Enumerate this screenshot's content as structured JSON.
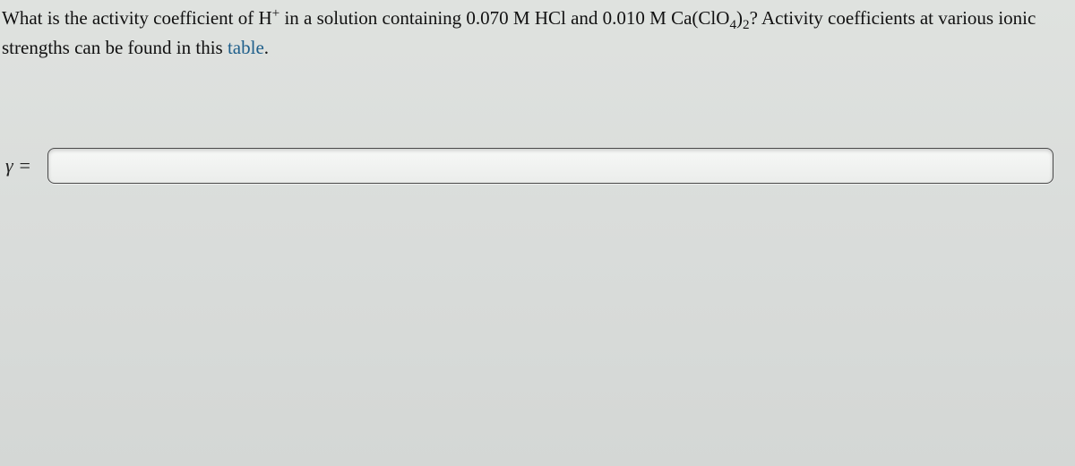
{
  "background_color": "#dfe2df",
  "text_color": "#111111",
  "link_color": "#1f5f8b",
  "font_family": "Georgia, 'Times New Roman', serif",
  "question": {
    "prefix": "What is the activity coefficient of H",
    "h_sup": "+",
    "mid1": " in a solution containing 0.070 M HCl and 0.010 M Ca(ClO",
    "clo_sub": "4",
    "mid2": ")",
    "paren_sub": "2",
    "mid3": "? Activity coefficients at various ionic strengths can be found in this ",
    "link_text": "table",
    "suffix": ".",
    "fontsize": 21
  },
  "answer": {
    "label_html": "γ =",
    "input_value": "",
    "input_placeholder": "",
    "input_border_color": "#4a4a4a",
    "input_bg_top": "#f7f8f7",
    "input_bg_bottom": "#ebedeb",
    "input_height": 40,
    "input_radius": 8
  }
}
